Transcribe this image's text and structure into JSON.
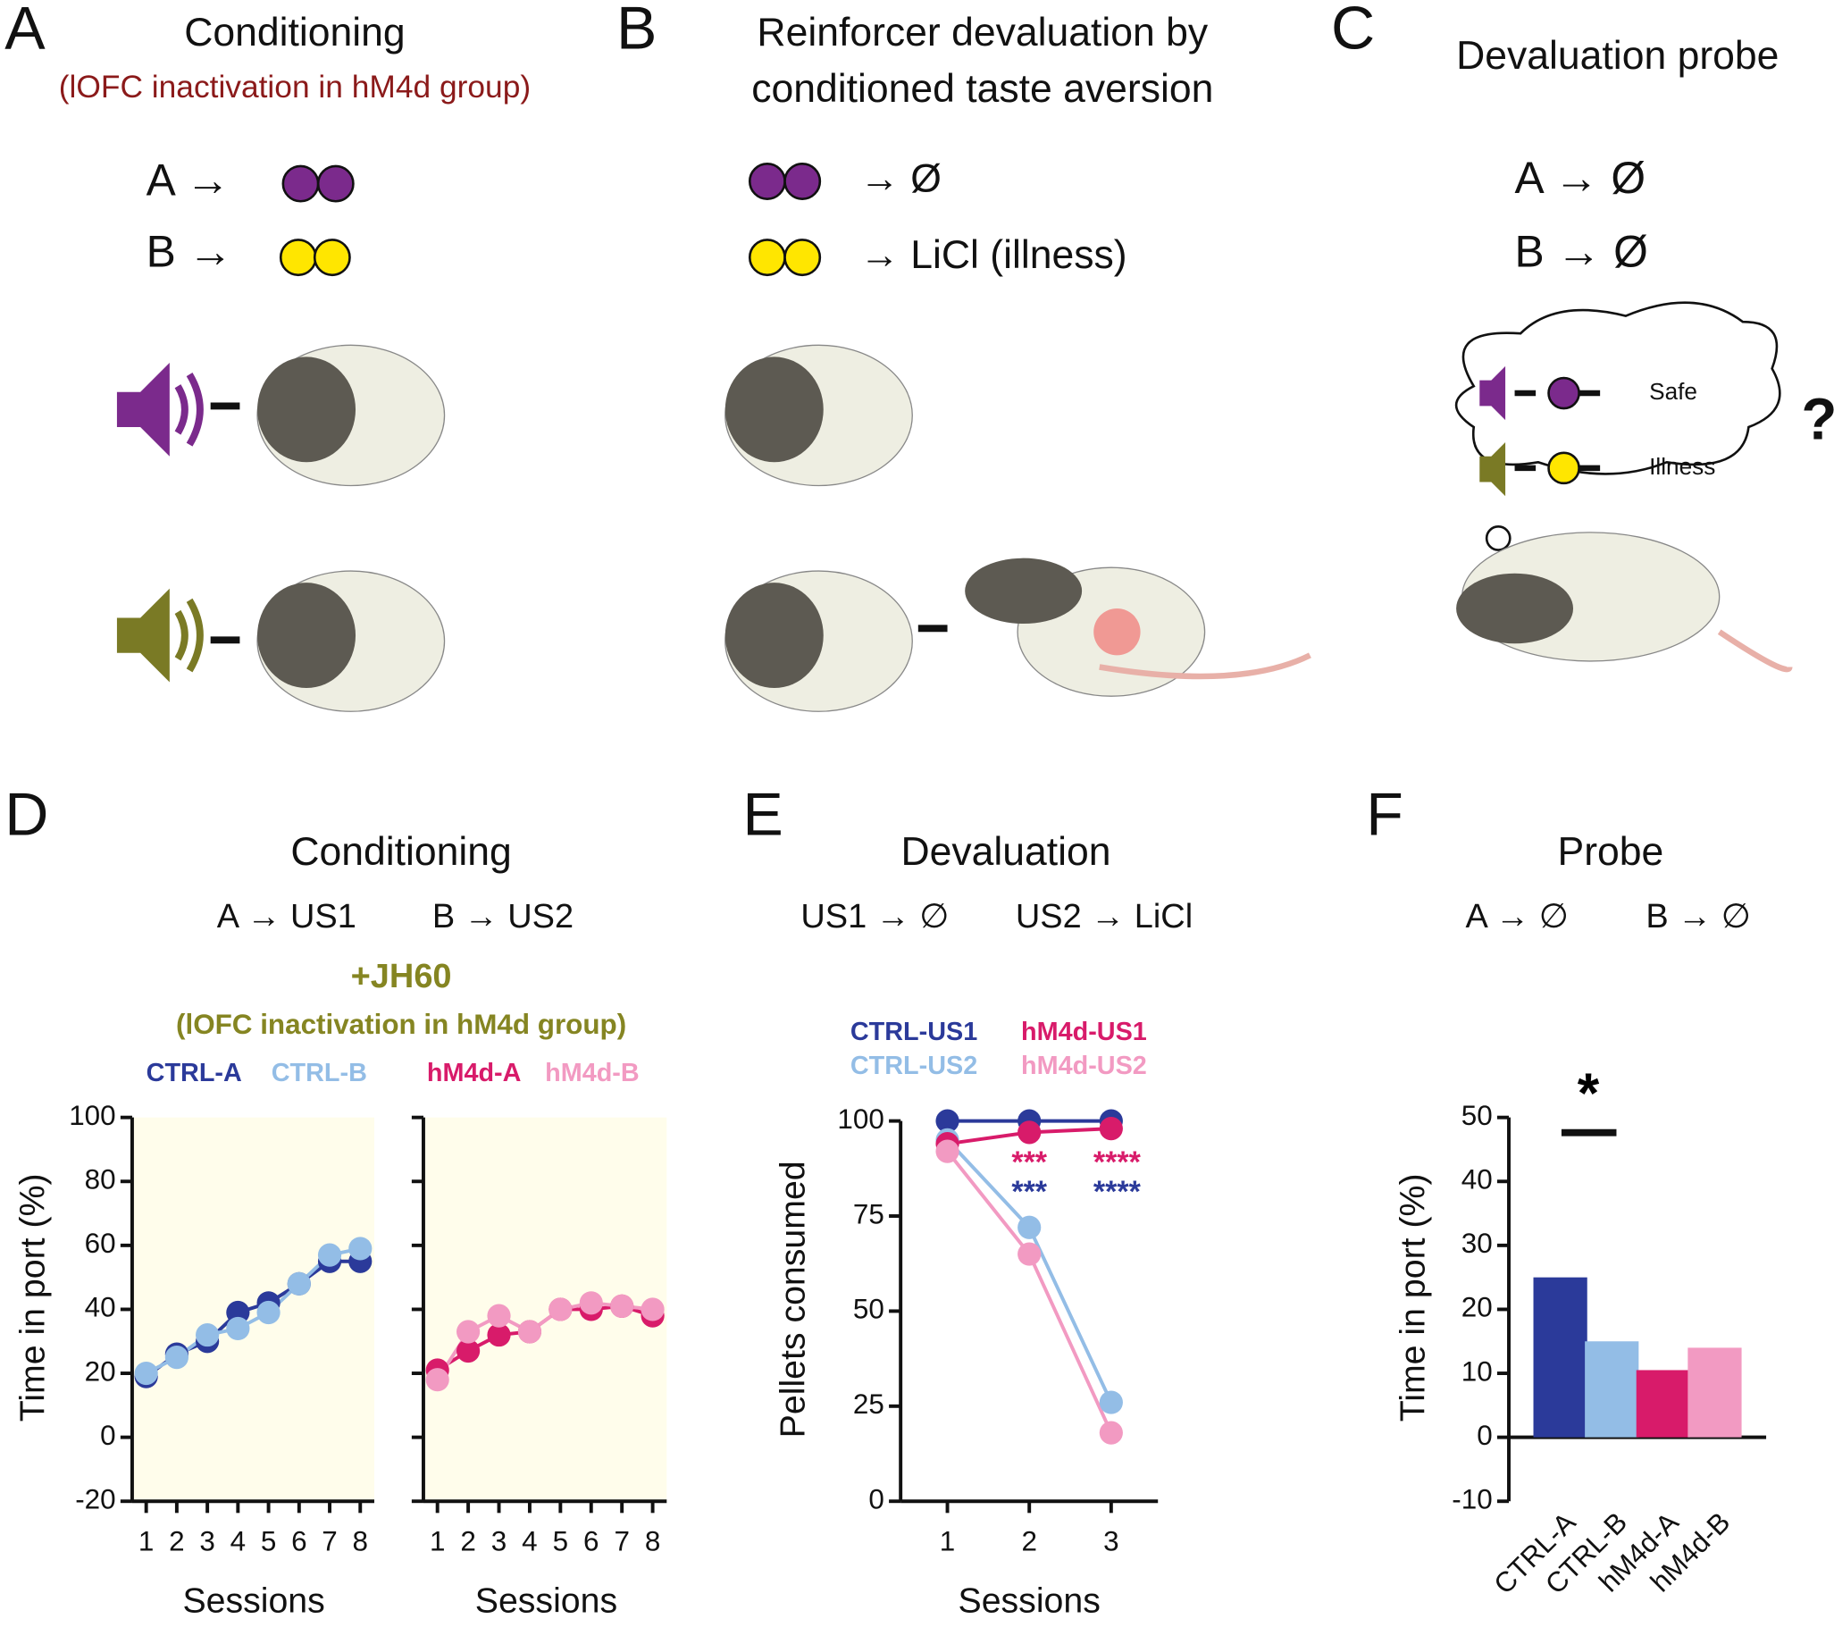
{
  "panels": [
    {
      "letter": "A",
      "title": "Conditioning",
      "note": "(lOFC inactivation in hM4d group)",
      "rules": [
        "A →",
        "B →"
      ]
    },
    {
      "letter": "B",
      "title": [
        "Reinforcer devaluation by",
        "conditioned taste aversion"
      ],
      "rules": [
        "→  Ø",
        "→  LiCl (illness)"
      ]
    },
    {
      "letter": "C",
      "title": "Devaluation probe",
      "rules": [
        "A →  Ø",
        "B →  Ø"
      ],
      "thought": [
        "Safe",
        "Illness"
      ],
      "question": "?"
    }
  ],
  "chart_data": [
    {
      "type": "line",
      "panel": "D",
      "title": "Conditioning",
      "subtitles": [
        "A → US1",
        "B → US2"
      ],
      "treatment": "+JH60",
      "note": "(lOFC inactivation in hM4d group)",
      "categories": [
        "1",
        "2",
        "3",
        "4",
        "5",
        "6",
        "7",
        "8"
      ],
      "ylabel": "Time in port (%)",
      "xlabel": "Sessions",
      "ylim": [
        -20,
        100
      ],
      "yticks": [
        -20,
        0,
        20,
        40,
        60,
        80,
        100
      ],
      "ytick_labels": true,
      "background": "#fffdeb",
      "series": [
        {
          "name": "CTRL-A",
          "color": "#2b3a9a",
          "values": [
            19,
            26,
            30,
            39,
            42,
            48,
            55,
            55
          ]
        },
        {
          "name": "CTRL-B",
          "color": "#93bde6",
          "values": [
            20,
            25,
            32,
            34,
            39,
            48,
            57,
            59
          ]
        }
      ]
    },
    {
      "type": "line",
      "categories": [
        "1",
        "2",
        "3",
        "4",
        "5",
        "6",
        "7",
        "8"
      ],
      "xlabel": "Sessions",
      "ylim": [
        -20,
        100
      ],
      "yticks": [
        -20,
        0,
        20,
        40,
        60,
        80,
        100
      ],
      "ytick_labels": false,
      "background": "#fffdeb",
      "series": [
        {
          "name": "hM4d-A",
          "color": "#d81b6a",
          "values": [
            21,
            27,
            32,
            33,
            40,
            40,
            41,
            38
          ]
        },
        {
          "name": "hM4d-B",
          "color": "#f29ac2",
          "values": [
            18,
            33,
            38,
            33,
            40,
            42,
            41,
            40
          ]
        }
      ]
    },
    {
      "type": "line",
      "panel": "E",
      "title": "Devaluation",
      "subtitles": [
        "US1 → ∅",
        "US2 → LiCl"
      ],
      "categories": [
        "1",
        "2",
        "3"
      ],
      "ylabel": "Pellets consumed",
      "xlabel": "Sessions",
      "ylim": [
        0,
        100
      ],
      "yticks": [
        0,
        25,
        50,
        75,
        100
      ],
      "ytick_labels": true,
      "series": [
        {
          "name": "CTRL-US1",
          "color": "#2b3a9a",
          "values": [
            100,
            100,
            100
          ]
        },
        {
          "name": "CTRL-US2",
          "color": "#93bde6",
          "values": [
            95,
            72,
            26
          ]
        },
        {
          "name": "hM4d-US1",
          "color": "#d81b6a",
          "values": [
            94,
            97,
            98
          ]
        },
        {
          "name": "hM4d-US2",
          "color": "#f29ac2",
          "values": [
            92,
            65,
            18
          ]
        }
      ],
      "annotations": [
        {
          "text": "***",
          "color": "#d81b6a"
        },
        {
          "text": "***",
          "color": "#2b3a9a"
        },
        {
          "text": "****",
          "color": "#d81b6a"
        },
        {
          "text": "****",
          "color": "#2b3a9a"
        }
      ]
    },
    {
      "type": "bar",
      "panel": "F",
      "title": "Probe",
      "subtitles": [
        "A → ∅",
        "B → ∅"
      ],
      "categories": [
        "CTRL-A",
        "CTRL-B",
        "hM4d-A",
        "hM4d-B"
      ],
      "values": [
        25,
        15,
        10.5,
        14
      ],
      "colors": [
        "#2b3a9a",
        "#93bde6",
        "#d81b6a",
        "#f29ac2"
      ],
      "ylabel": "Time in port (%)",
      "ylim": [
        -10,
        50
      ],
      "yticks": [
        -10,
        0,
        10,
        20,
        30,
        40,
        50
      ],
      "ytick_labels": true,
      "annotations": [
        {
          "text": "*",
          "color": "#000000"
        }
      ]
    }
  ]
}
